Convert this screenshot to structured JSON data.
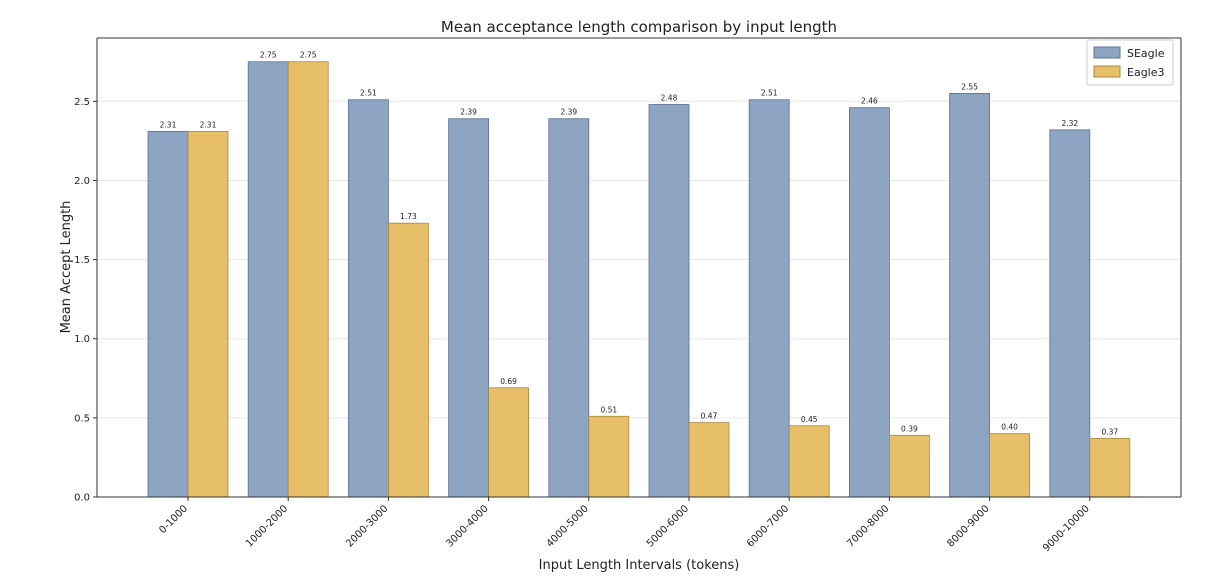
{
  "colors": {
    "seagle": "#8da4c2",
    "seagle_edge": "#5f7191",
    "eagle3": "#e6bf68",
    "eagle3_edge": "#a9883f",
    "grid": "#e6e6e6",
    "axis": "#333333"
  },
  "chart_data": {
    "type": "bar",
    "title": "Mean acceptance length comparison by input length",
    "xlabel": "Input Length Intervals (tokens)",
    "ylabel": "Mean Accept Length",
    "ylim": [
      0,
      2.9
    ],
    "yticks": [
      "0.0",
      "0.5",
      "1.0",
      "1.5",
      "2.0",
      "2.5"
    ],
    "grid": true,
    "legend_position": "top-right",
    "categories": [
      "0-1000",
      "1000-2000",
      "2000-3000",
      "3000-4000",
      "4000-5000",
      "5000-6000",
      "6000-7000",
      "7000-8000",
      "8000-9000",
      "9000-10000"
    ],
    "series": [
      {
        "name": "SEagle",
        "values": [
          2.31,
          2.75,
          2.51,
          2.39,
          2.39,
          2.48,
          2.51,
          2.46,
          2.55,
          2.32
        ],
        "labels": [
          "2.31",
          "2.75",
          "2.51",
          "2.39",
          "2.39",
          "2.48",
          "2.51",
          "2.46",
          "2.55",
          "2.32"
        ]
      },
      {
        "name": "Eagle3",
        "values": [
          2.31,
          2.75,
          1.73,
          0.69,
          0.51,
          0.47,
          0.45,
          0.39,
          0.4,
          0.37
        ],
        "labels": [
          "2.31",
          "2.75",
          "1.73",
          "0.69",
          "0.51",
          "0.47",
          "0.45",
          "0.39",
          "0.40",
          "0.37"
        ]
      }
    ]
  }
}
